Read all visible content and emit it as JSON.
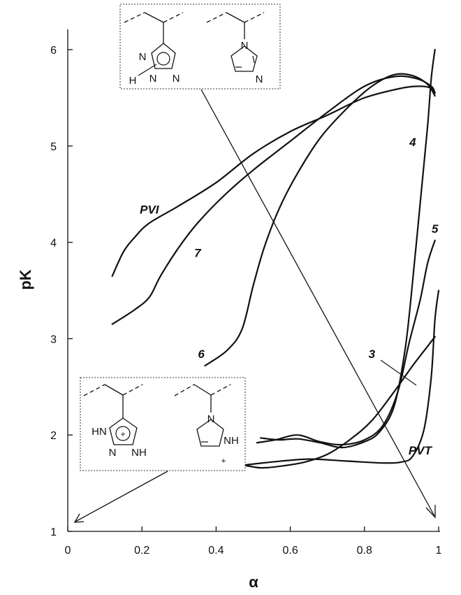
{
  "chart_data": {
    "type": "line",
    "xlabel": "α",
    "ylabel": "pK",
    "xlim": [
      0,
      1
    ],
    "ylim": [
      1,
      6.3
    ],
    "x_ticks": [
      "0",
      "0.2",
      "0.4",
      "0.6",
      "0.8",
      "1"
    ],
    "y_ticks": [
      "1",
      "2",
      "3",
      "4",
      "5",
      "6"
    ],
    "grid": false,
    "series": [
      {
        "name": "PVI",
        "label_at": [
          0.22,
          4.3
        ],
        "points": [
          [
            0.12,
            3.65
          ],
          [
            0.15,
            3.9
          ],
          [
            0.18,
            4.05
          ],
          [
            0.22,
            4.2
          ],
          [
            0.3,
            4.38
          ],
          [
            0.4,
            4.62
          ],
          [
            0.5,
            4.92
          ],
          [
            0.6,
            5.15
          ],
          [
            0.7,
            5.32
          ],
          [
            0.8,
            5.5
          ],
          [
            0.9,
            5.6
          ],
          [
            0.95,
            5.62
          ],
          [
            0.98,
            5.6
          ],
          [
            0.99,
            5.55
          ]
        ]
      },
      {
        "name": "7",
        "label_at": [
          0.35,
          3.85
        ],
        "points": [
          [
            0.12,
            3.15
          ],
          [
            0.18,
            3.3
          ],
          [
            0.22,
            3.43
          ],
          [
            0.25,
            3.65
          ],
          [
            0.3,
            3.95
          ],
          [
            0.35,
            4.2
          ],
          [
            0.42,
            4.48
          ],
          [
            0.5,
            4.75
          ],
          [
            0.6,
            5.05
          ],
          [
            0.7,
            5.35
          ],
          [
            0.8,
            5.62
          ],
          [
            0.88,
            5.72
          ],
          [
            0.94,
            5.7
          ],
          [
            0.98,
            5.62
          ],
          [
            0.99,
            5.55
          ]
        ]
      },
      {
        "name": "6",
        "label_at": [
          0.36,
          2.8
        ],
        "points": [
          [
            0.37,
            2.72
          ],
          [
            0.43,
            2.88
          ],
          [
            0.47,
            3.1
          ],
          [
            0.5,
            3.55
          ],
          [
            0.53,
            3.95
          ],
          [
            0.57,
            4.35
          ],
          [
            0.62,
            4.72
          ],
          [
            0.68,
            5.08
          ],
          [
            0.75,
            5.38
          ],
          [
            0.82,
            5.62
          ],
          [
            0.88,
            5.74
          ],
          [
            0.93,
            5.73
          ],
          [
            0.97,
            5.64
          ],
          [
            0.99,
            5.52
          ]
        ]
      },
      {
        "name": "4",
        "label_at": [
          0.93,
          5.0
        ],
        "points": [
          [
            0.52,
            1.97
          ],
          [
            0.57,
            1.95
          ],
          [
            0.62,
            1.96
          ],
          [
            0.68,
            1.92
          ],
          [
            0.74,
            1.87
          ],
          [
            0.8,
            1.93
          ],
          [
            0.84,
            2.03
          ],
          [
            0.88,
            2.3
          ],
          [
            0.91,
            2.9
          ],
          [
            0.93,
            3.6
          ],
          [
            0.95,
            4.4
          ],
          [
            0.97,
            5.2
          ],
          [
            0.98,
            5.7
          ],
          [
            0.99,
            6.0
          ]
        ]
      },
      {
        "name": "5",
        "label_at": [
          0.99,
          4.1
        ],
        "points": [
          [
            0.51,
            1.92
          ],
          [
            0.56,
            1.95
          ],
          [
            0.62,
            2.0
          ],
          [
            0.68,
            1.93
          ],
          [
            0.74,
            1.9
          ],
          [
            0.8,
            1.95
          ],
          [
            0.85,
            2.1
          ],
          [
            0.89,
            2.45
          ],
          [
            0.92,
            2.95
          ],
          [
            0.95,
            3.4
          ],
          [
            0.97,
            3.78
          ],
          [
            0.99,
            4.02
          ]
        ]
      },
      {
        "name": "3",
        "label_at": [
          0.82,
          2.8
        ],
        "points": [
          [
            0.46,
            1.7
          ],
          [
            0.52,
            1.66
          ],
          [
            0.58,
            1.68
          ],
          [
            0.64,
            1.72
          ],
          [
            0.7,
            1.8
          ],
          [
            0.76,
            1.95
          ],
          [
            0.82,
            2.15
          ],
          [
            0.88,
            2.45
          ],
          [
            0.93,
            2.72
          ],
          [
            0.97,
            2.92
          ],
          [
            0.99,
            3.02
          ]
        ]
      },
      {
        "name": "PVT",
        "label_at": [
          0.95,
          1.8
        ],
        "points": [
          [
            0.46,
            1.68
          ],
          [
            0.55,
            1.72
          ],
          [
            0.65,
            1.75
          ],
          [
            0.75,
            1.73
          ],
          [
            0.85,
            1.71
          ],
          [
            0.9,
            1.72
          ],
          [
            0.93,
            1.78
          ],
          [
            0.96,
            2.05
          ],
          [
            0.98,
            2.6
          ],
          [
            0.99,
            3.2
          ],
          [
            1.0,
            3.5
          ]
        ]
      }
    ],
    "annotations": {
      "box_top": {
        "left_structure_atoms": [
          "N",
          "H",
          "N",
          "N"
        ],
        "right_structure_atoms": [
          "N",
          "N"
        ]
      },
      "box_bottom": {
        "left_structure_atoms": [
          "HN",
          "+",
          "N",
          "NH"
        ],
        "right_structure_atoms": [
          "N",
          "NH",
          "+"
        ]
      }
    }
  }
}
